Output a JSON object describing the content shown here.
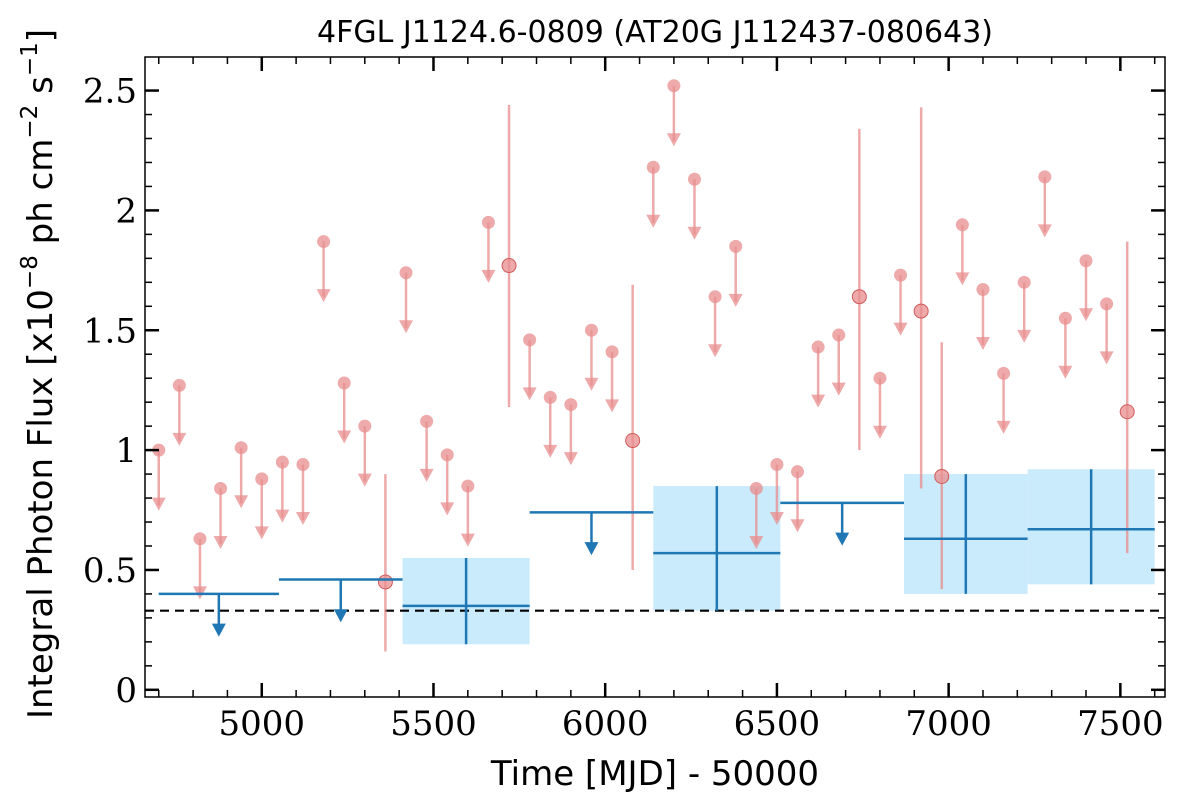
{
  "chart_data": {
    "type": "scatter",
    "title": "4FGL J1124.6-0809 (AT20G J112437-080643)",
    "xlabel": "Time [MJD] - 50000",
    "ylabel": "Integral Photon Flux [x10^-8 ph cm^-2 s^-1]",
    "xlim": [
      4660,
      7630
    ],
    "ylim": [
      -0.03,
      2.64
    ],
    "x_ticks": [
      5000,
      5500,
      6000,
      6500,
      7000,
      7500
    ],
    "y_ticks": [
      0,
      0.5,
      1,
      1.5,
      2,
      2.5
    ],
    "y_tick_labels": [
      "0",
      "0.5",
      "1",
      "1.5",
      "2",
      "2.5"
    ],
    "dashed_line_y": 0.33,
    "colors": {
      "fine_bins": "#e88e8e",
      "coarse_bins": "#1f77b4",
      "error_box": "#c9ebfb",
      "dashed": "#000000"
    },
    "fine_bin_upper_limits": [
      {
        "x": 4700,
        "y": 1.0
      },
      {
        "x": 4760,
        "y": 1.27
      },
      {
        "x": 4820,
        "y": 0.63
      },
      {
        "x": 4880,
        "y": 0.84
      },
      {
        "x": 4940,
        "y": 1.01
      },
      {
        "x": 5000,
        "y": 0.88
      },
      {
        "x": 5060,
        "y": 0.95
      },
      {
        "x": 5120,
        "y": 0.94
      },
      {
        "x": 5180,
        "y": 1.87
      },
      {
        "x": 5240,
        "y": 1.28
      },
      {
        "x": 5300,
        "y": 1.1
      },
      {
        "x": 5420,
        "y": 1.74
      },
      {
        "x": 5480,
        "y": 1.12
      },
      {
        "x": 5540,
        "y": 0.98
      },
      {
        "x": 5600,
        "y": 0.85
      },
      {
        "x": 5660,
        "y": 1.95
      },
      {
        "x": 5780,
        "y": 1.46
      },
      {
        "x": 5840,
        "y": 1.22
      },
      {
        "x": 5900,
        "y": 1.19
      },
      {
        "x": 5960,
        "y": 1.5
      },
      {
        "x": 6020,
        "y": 1.41
      },
      {
        "x": 6140,
        "y": 2.18
      },
      {
        "x": 6200,
        "y": 2.52
      },
      {
        "x": 6260,
        "y": 2.13
      },
      {
        "x": 6320,
        "y": 1.64
      },
      {
        "x": 6380,
        "y": 1.85
      },
      {
        "x": 6440,
        "y": 0.84
      },
      {
        "x": 6500,
        "y": 0.94
      },
      {
        "x": 6560,
        "y": 0.91
      },
      {
        "x": 6620,
        "y": 1.43
      },
      {
        "x": 6680,
        "y": 1.48
      },
      {
        "x": 6800,
        "y": 1.3
      },
      {
        "x": 6860,
        "y": 1.73
      },
      {
        "x": 7040,
        "y": 1.94
      },
      {
        "x": 7100,
        "y": 1.67
      },
      {
        "x": 7160,
        "y": 1.32
      },
      {
        "x": 7220,
        "y": 1.7
      },
      {
        "x": 7280,
        "y": 2.14
      },
      {
        "x": 7340,
        "y": 1.55
      },
      {
        "x": 7400,
        "y": 1.79
      },
      {
        "x": 7460,
        "y": 1.61
      }
    ],
    "fine_bin_detections": [
      {
        "x": 5360,
        "y": 0.45,
        "ylo": 0.16,
        "yhi": 0.9
      },
      {
        "x": 5720,
        "y": 1.77,
        "ylo": 1.18,
        "yhi": 2.44
      },
      {
        "x": 6080,
        "y": 1.04,
        "ylo": 0.5,
        "yhi": 1.69
      },
      {
        "x": 6740,
        "y": 1.64,
        "ylo": 1.0,
        "yhi": 2.34
      },
      {
        "x": 6920,
        "y": 1.58,
        "ylo": 0.84,
        "yhi": 2.43
      },
      {
        "x": 6980,
        "y": 0.89,
        "ylo": 0.42,
        "yhi": 1.45
      },
      {
        "x": 7520,
        "y": 1.16,
        "ylo": 0.57,
        "yhi": 1.87
      }
    ],
    "coarse_bin_upper_limits": [
      {
        "x0": 4700,
        "x1": 5050,
        "y": 0.4
      },
      {
        "x0": 5050,
        "x1": 5410,
        "y": 0.46
      },
      {
        "x0": 5780,
        "x1": 6140,
        "y": 0.74
      },
      {
        "x0": 6510,
        "x1": 6870,
        "y": 0.78
      }
    ],
    "coarse_bin_detections": [
      {
        "x0": 5410,
        "x1": 5780,
        "y": 0.35,
        "ylo": 0.19,
        "yhi": 0.55
      },
      {
        "x0": 6140,
        "x1": 6510,
        "y": 0.57,
        "ylo": 0.33,
        "yhi": 0.85
      },
      {
        "x0": 6870,
        "x1": 7230,
        "y": 0.63,
        "ylo": 0.4,
        "yhi": 0.9
      },
      {
        "x0": 7230,
        "x1": 7600,
        "y": 0.67,
        "ylo": 0.44,
        "yhi": 0.92
      }
    ]
  }
}
